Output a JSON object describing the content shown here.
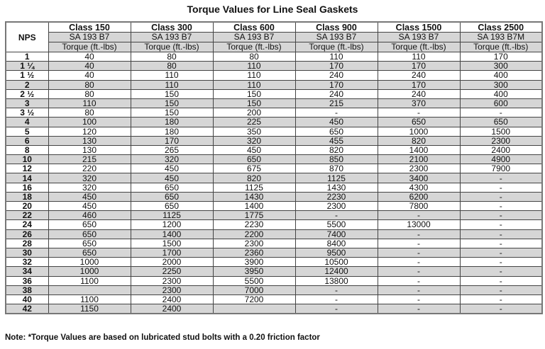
{
  "title": "Torque Values for Line Seal Gaskets",
  "header": {
    "nps_label": "NPS",
    "columns": [
      {
        "class": "Class 150",
        "bolt": "SA 193 B7",
        "unit": "Torque (ft.-lbs)"
      },
      {
        "class": "Class 300",
        "bolt": "SA 193 B7",
        "unit": "Torque (ft.-lbs)"
      },
      {
        "class": "Class 600",
        "bolt": "SA 193 B7",
        "unit": "Torque (ft.-lbs)"
      },
      {
        "class": "Class 900",
        "bolt": "SA 193 B7",
        "unit": "Torque (ft.-lbs)"
      },
      {
        "class": "Class 1500",
        "bolt": "SA 193 B7",
        "unit": "Torque (ft.-lbs)"
      },
      {
        "class": "Class 2500",
        "bolt": "SA 193 B7M",
        "unit": "Torque (ft.-lbs)"
      }
    ]
  },
  "rows": [
    {
      "nps": "1",
      "values": [
        "40",
        "80",
        "80",
        "110",
        "110",
        "170"
      ]
    },
    {
      "nps": "1 ¼",
      "values": [
        "40",
        "80",
        "110",
        "170",
        "170",
        "300"
      ]
    },
    {
      "nps": "1 ½",
      "values": [
        "40",
        "110",
        "110",
        "240",
        "240",
        "400"
      ]
    },
    {
      "nps": "2",
      "values": [
        "80",
        "110",
        "110",
        "170",
        "170",
        "300"
      ]
    },
    {
      "nps": "2 ½",
      "values": [
        "80",
        "150",
        "150",
        "240",
        "240",
        "400"
      ]
    },
    {
      "nps": "3",
      "values": [
        "110",
        "150",
        "150",
        "215",
        "370",
        "600"
      ]
    },
    {
      "nps": "3 ½",
      "values": [
        "80",
        "150",
        "200",
        "-",
        "-",
        "-"
      ]
    },
    {
      "nps": "4",
      "values": [
        "100",
        "180",
        "225",
        "450",
        "650",
        "650"
      ]
    },
    {
      "nps": "5",
      "values": [
        "120",
        "180",
        "350",
        "650",
        "1000",
        "1500"
      ]
    },
    {
      "nps": "6",
      "values": [
        "130",
        "170",
        "320",
        "455",
        "820",
        "2300"
      ]
    },
    {
      "nps": "8",
      "values": [
        "130",
        "265",
        "450",
        "820",
        "1400",
        "2400"
      ]
    },
    {
      "nps": "10",
      "values": [
        "215",
        "320",
        "650",
        "850",
        "2100",
        "4900"
      ]
    },
    {
      "nps": "12",
      "values": [
        "220",
        "450",
        "675",
        "870",
        "2300",
        "7900"
      ]
    },
    {
      "nps": "14",
      "values": [
        "320",
        "450",
        "820",
        "1125",
        "3400",
        "-"
      ]
    },
    {
      "nps": "16",
      "values": [
        "320",
        "650",
        "1125",
        "1430",
        "4300",
        "-"
      ]
    },
    {
      "nps": "18",
      "values": [
        "450",
        "650",
        "1430",
        "2230",
        "6200",
        "-"
      ]
    },
    {
      "nps": "20",
      "values": [
        "450",
        "650",
        "1400",
        "2300",
        "7800",
        "-"
      ]
    },
    {
      "nps": "22",
      "values": [
        "460",
        "1125",
        "1775",
        "-",
        "-",
        "-"
      ]
    },
    {
      "nps": "24",
      "values": [
        "650",
        "1200",
        "2230",
        "5500",
        "13000",
        "-"
      ]
    },
    {
      "nps": "26",
      "values": [
        "650",
        "1400",
        "2200",
        "7400",
        "-",
        "-"
      ]
    },
    {
      "nps": "28",
      "values": [
        "650",
        "1500",
        "2300",
        "8400",
        "-",
        "-"
      ]
    },
    {
      "nps": "30",
      "values": [
        "650",
        "1700",
        "2360",
        "9500",
        "-",
        "-"
      ]
    },
    {
      "nps": "32",
      "values": [
        "1000",
        "2000",
        "3900",
        "10500",
        "-",
        "-"
      ]
    },
    {
      "nps": "34",
      "values": [
        "1000",
        "2250",
        "3950",
        "12400",
        "-",
        "-"
      ]
    },
    {
      "nps": "36",
      "values": [
        "1100",
        "2300",
        "5500",
        "13800",
        "-",
        "-"
      ]
    },
    {
      "nps": "38",
      "values": [
        "",
        "2300",
        "7000",
        "-",
        "-",
        "-"
      ]
    },
    {
      "nps": "40",
      "values": [
        "1100",
        "2400",
        "7200",
        "-",
        "-",
        "-"
      ]
    },
    {
      "nps": "42",
      "values": [
        "1150",
        "2400",
        "",
        "-",
        "-",
        "-"
      ]
    }
  ],
  "note": "Note: *Torque Values are based on lubricated stud bolts with a 0.20 friction factor",
  "colors": {
    "shade": "#d6d6d6",
    "border": "#444444"
  }
}
